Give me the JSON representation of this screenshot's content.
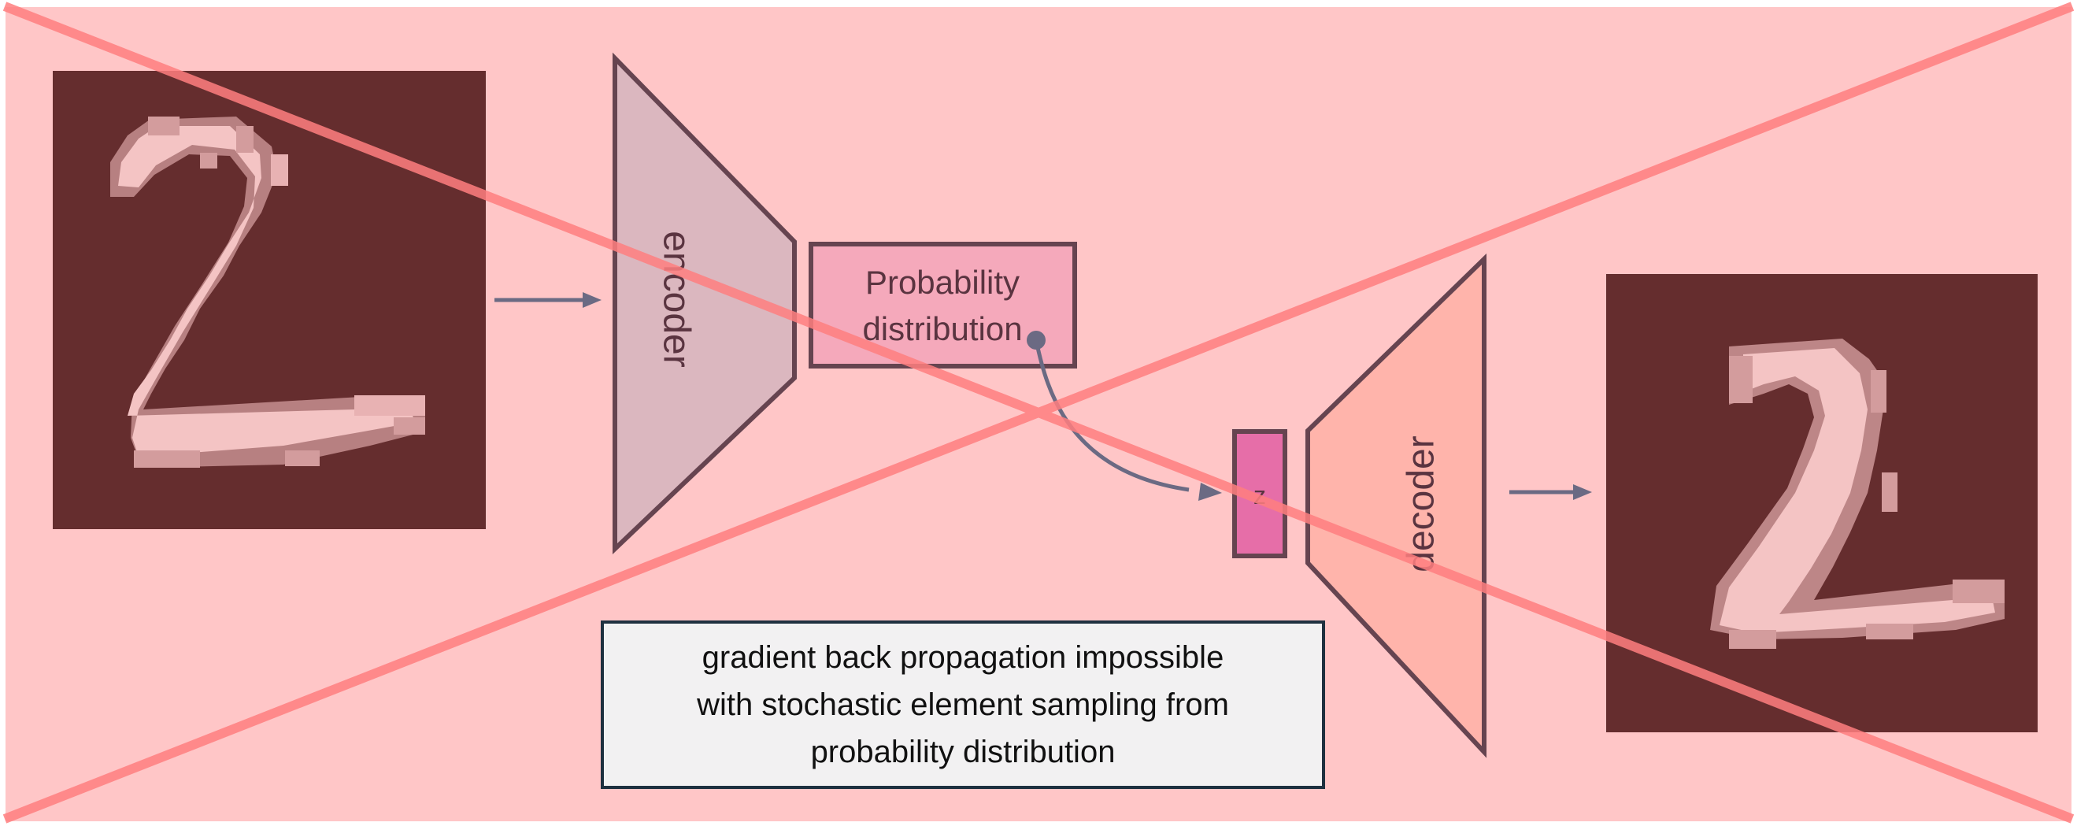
{
  "labels": {
    "encoder": "encoder",
    "decoder": "decoder",
    "distribution_line1": "Probability",
    "distribution_line2": "distribution",
    "latent": "z",
    "note_line1": "gradient back propagation impossible",
    "note_line2": "with stochastic element sampling from",
    "note_line3": "probability distribution"
  },
  "colors": {
    "background": "#ffc6c7",
    "border": "#ffffff",
    "digit_bg": "#652d2e",
    "digit_fg": "#f4c4c4",
    "digit_edge": "#d39c9d",
    "encoder_fill": "#dbb7bf",
    "decoder_fill": "#ffb4ab",
    "distribution_fill": "#f5a9bb",
    "latent_fill": "#e66ea8",
    "outline": "#664450",
    "arrow": "#6b6a83",
    "cross": "#ff7f80",
    "note_fill": "#f2f1f2",
    "note_border": "#1f3140",
    "text": "#5a3440",
    "note_text": "#111111"
  },
  "digits": {
    "input": "2",
    "output": "2"
  }
}
